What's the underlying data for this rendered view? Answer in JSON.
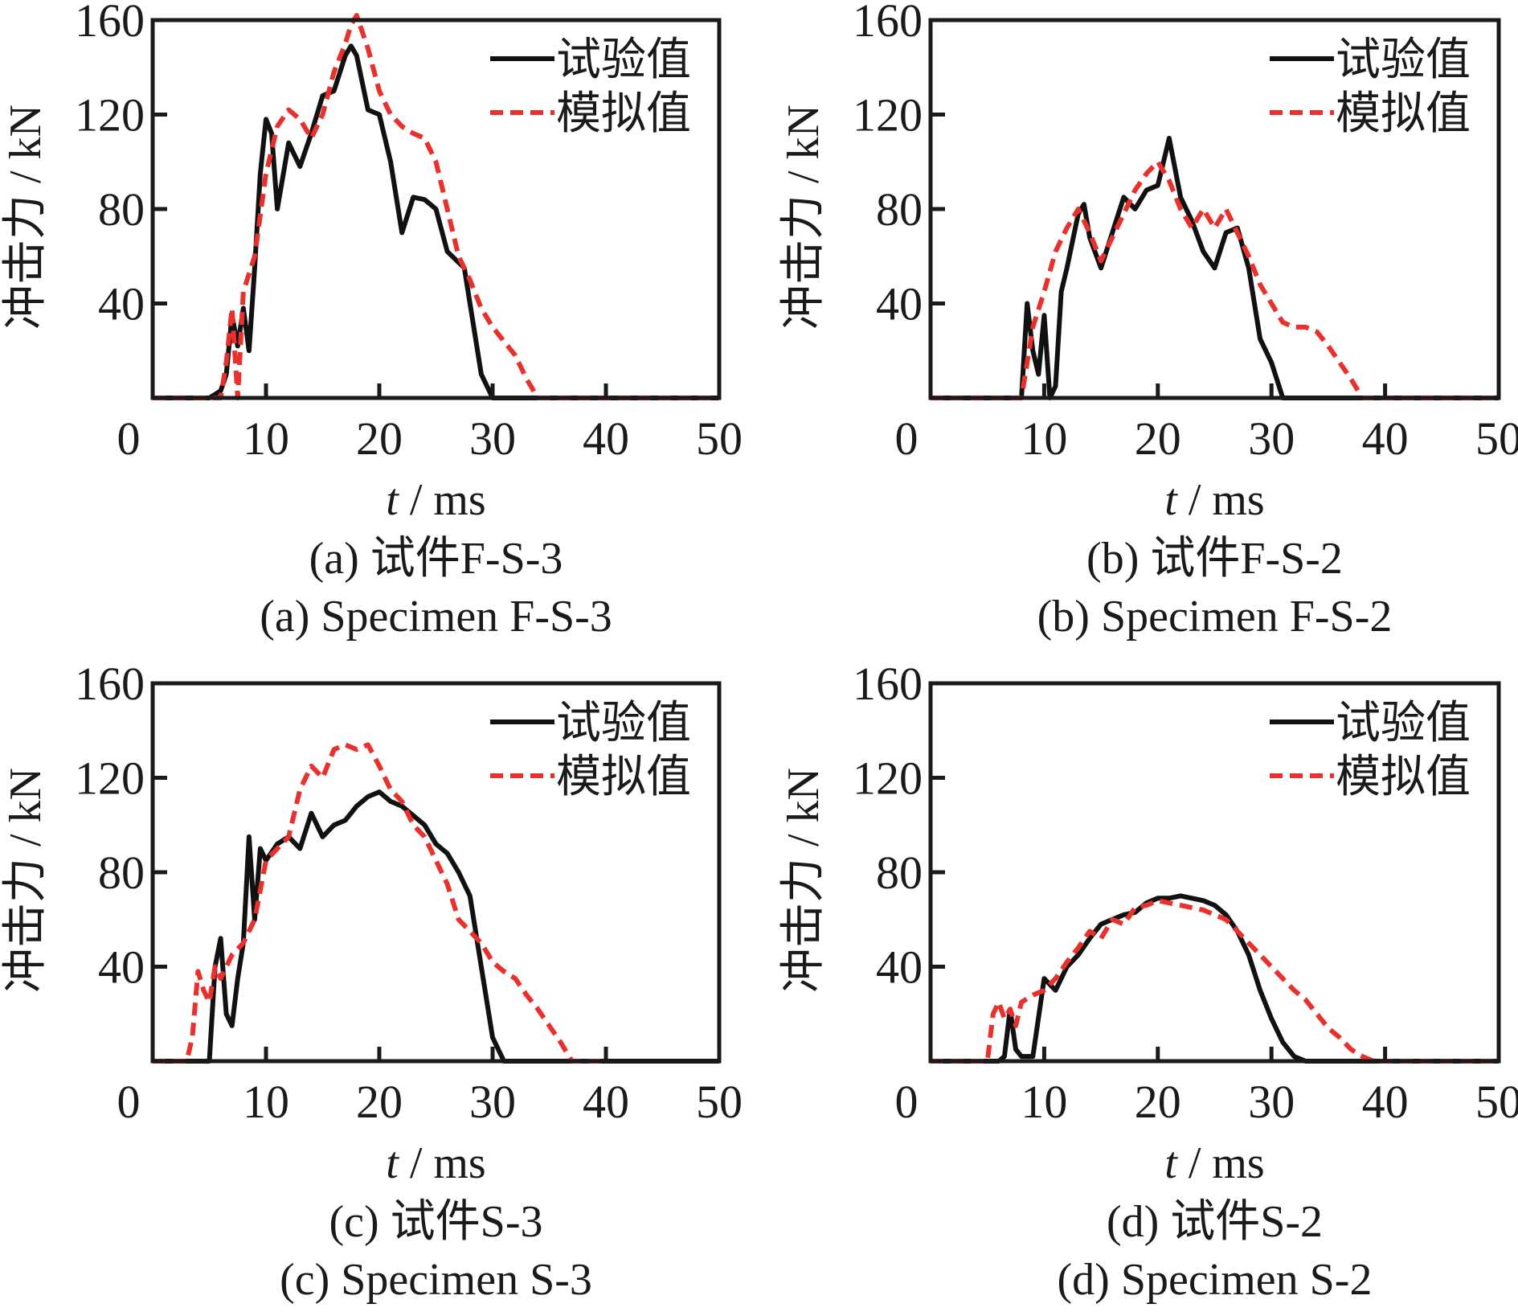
{
  "figure": {
    "legend": {
      "experimental": "试验值",
      "simulated": "模拟值"
    },
    "colors": {
      "experimental": "#111111",
      "simulated": "#e8302c"
    }
  },
  "chart_data": [
    {
      "type": "line",
      "panel": "a",
      "caption_cn": "(a)  试件F-S-3",
      "caption_en": "(a)  Specimen F-S-3",
      "xlabel_italic": "t",
      "xlabel_rest": " / ms",
      "ylabel": "冲击力 / kN",
      "xlim": [
        0,
        50
      ],
      "ylim": [
        0,
        160
      ],
      "xticks": [
        0,
        10,
        20,
        30,
        40,
        50
      ],
      "yticks": [
        40,
        80,
        120,
        160
      ],
      "legend_position": "top-right",
      "series": [
        {
          "name": "试验值",
          "style": "solid",
          "x": [
            0,
            5,
            6,
            6.5,
            7,
            7.5,
            8,
            8.5,
            9,
            9.5,
            10,
            10.5,
            11,
            12,
            13,
            14,
            15,
            16,
            17,
            17.5,
            18,
            19,
            20,
            21,
            22,
            23,
            24,
            25,
            26,
            27.5,
            29,
            30,
            50
          ],
          "y": [
            0,
            0,
            3,
            10,
            35,
            22,
            38,
            20,
            55,
            95,
            118,
            112,
            80,
            108,
            98,
            112,
            128,
            130,
            145,
            149,
            145,
            122,
            120,
            100,
            70,
            85,
            84,
            80,
            62,
            55,
            10,
            0,
            0
          ]
        },
        {
          "name": "模拟值",
          "style": "dashed",
          "x": [
            0,
            6,
            6.5,
            7,
            7.5,
            8,
            9,
            10,
            11,
            12,
            13,
            14,
            15,
            16,
            17,
            17.5,
            18,
            19,
            20,
            21,
            22,
            23,
            24,
            25,
            26,
            27,
            28,
            29,
            30,
            31,
            32,
            33,
            34,
            50
          ],
          "y": [
            0,
            0,
            15,
            38,
            0,
            45,
            60,
            95,
            115,
            122,
            118,
            110,
            120,
            138,
            150,
            158,
            162,
            148,
            130,
            120,
            115,
            112,
            110,
            100,
            80,
            60,
            50,
            38,
            30,
            24,
            18,
            8,
            0,
            0
          ]
        }
      ]
    },
    {
      "type": "line",
      "panel": "b",
      "caption_cn": "(b)  试件F-S-2",
      "caption_en": "(b)  Specimen F-S-2",
      "xlabel_italic": "t",
      "xlabel_rest": " / ms",
      "ylabel": "冲击力 / kN",
      "xlim": [
        0,
        50
      ],
      "ylim": [
        0,
        160
      ],
      "xticks": [
        0,
        10,
        20,
        30,
        40,
        50
      ],
      "yticks": [
        40,
        80,
        120,
        160
      ],
      "legend_position": "top-right",
      "series": [
        {
          "name": "试验值",
          "style": "solid",
          "x": [
            0,
            8,
            8.5,
            9,
            9.5,
            10,
            10.5,
            11,
            11.5,
            12,
            13,
            13.5,
            14,
            15,
            16,
            17,
            18,
            19,
            20,
            20.5,
            21,
            22,
            23,
            24,
            25,
            26,
            27,
            28,
            29,
            30,
            31,
            50
          ],
          "y": [
            0,
            0,
            40,
            20,
            10,
            35,
            0,
            5,
            45,
            55,
            78,
            82,
            68,
            55,
            70,
            85,
            80,
            88,
            90,
            100,
            110,
            85,
            75,
            62,
            55,
            70,
            72,
            55,
            25,
            15,
            0,
            0
          ]
        },
        {
          "name": "模拟值",
          "style": "dashed",
          "x": [
            0,
            8,
            8.5,
            9,
            10,
            11,
            12,
            13,
            14,
            15,
            16,
            17,
            18,
            19,
            20,
            21,
            22,
            23,
            24,
            25,
            26,
            27,
            28,
            29,
            30,
            31,
            32,
            33,
            34,
            35,
            36,
            37,
            38,
            39,
            50
          ],
          "y": [
            0,
            0,
            15,
            30,
            45,
            62,
            72,
            80,
            70,
            58,
            68,
            78,
            88,
            95,
            100,
            92,
            80,
            72,
            80,
            72,
            80,
            70,
            60,
            48,
            40,
            32,
            30,
            30,
            28,
            22,
            15,
            8,
            0,
            0,
            0
          ]
        }
      ]
    },
    {
      "type": "line",
      "panel": "c",
      "caption_cn": "(c)  试件S-3",
      "caption_en": "(c)  Specimen S-3",
      "xlabel_italic": "t",
      "xlabel_rest": " / ms",
      "ylabel": "冲击力 / kN",
      "xlim": [
        0,
        50
      ],
      "ylim": [
        0,
        160
      ],
      "xticks": [
        0,
        10,
        20,
        30,
        40,
        50
      ],
      "yticks": [
        40,
        80,
        120,
        160
      ],
      "legend_position": "top-right",
      "series": [
        {
          "name": "试验值",
          "style": "solid",
          "x": [
            0,
            5,
            5.5,
            6,
            6.5,
            7,
            7.5,
            8,
            8.5,
            9,
            9.5,
            10,
            11,
            12,
            13,
            14,
            15,
            16,
            17,
            18,
            19,
            20,
            21,
            22,
            23,
            24,
            25,
            26,
            27,
            28,
            29,
            30,
            31,
            50
          ],
          "y": [
            0,
            0,
            40,
            52,
            20,
            15,
            35,
            50,
            95,
            60,
            90,
            85,
            92,
            95,
            90,
            105,
            95,
            100,
            102,
            108,
            112,
            114,
            110,
            108,
            104,
            100,
            92,
            88,
            80,
            70,
            40,
            10,
            0,
            0
          ]
        },
        {
          "name": "模拟值",
          "style": "dashed",
          "x": [
            0,
            3,
            3.5,
            4,
            4.5,
            5,
            5.5,
            6,
            7,
            8,
            9,
            10,
            11,
            12,
            13,
            14,
            15,
            16,
            17,
            18,
            19,
            20,
            21,
            22,
            23,
            24,
            25,
            26,
            27,
            28,
            29,
            30,
            31,
            32,
            33,
            34,
            35,
            36,
            37,
            40
          ],
          "y": [
            0,
            0,
            10,
            38,
            30,
            25,
            40,
            35,
            45,
            50,
            60,
            85,
            90,
            95,
            115,
            125,
            120,
            132,
            134,
            132,
            134,
            125,
            115,
            110,
            100,
            95,
            85,
            75,
            60,
            55,
            50,
            42,
            38,
            35,
            28,
            22,
            15,
            8,
            0,
            0
          ]
        }
      ]
    },
    {
      "type": "line",
      "panel": "d",
      "caption_cn": "(d)  试件S-2",
      "caption_en": "(d)  Specimen S-2",
      "xlabel_italic": "t",
      "xlabel_rest": " / ms",
      "ylabel": "冲击力 / kN",
      "xlim": [
        0,
        50
      ],
      "ylim": [
        0,
        160
      ],
      "xticks": [
        0,
        10,
        20,
        30,
        40,
        50
      ],
      "yticks": [
        40,
        80,
        120,
        160
      ],
      "legend_position": "top-right",
      "series": [
        {
          "name": "试验值",
          "style": "solid",
          "x": [
            0,
            6,
            6.5,
            7,
            7.5,
            8,
            8.5,
            9,
            10,
            11,
            12,
            13,
            14,
            15,
            16,
            17,
            18,
            19,
            20,
            21,
            22,
            23,
            24,
            25,
            26,
            27,
            28,
            29,
            30,
            31,
            32,
            33,
            34,
            50
          ],
          "y": [
            0,
            0,
            2,
            22,
            5,
            2,
            2,
            2,
            35,
            30,
            40,
            45,
            52,
            58,
            60,
            62,
            63,
            67,
            69,
            69,
            70,
            69,
            68,
            66,
            62,
            55,
            45,
            30,
            18,
            8,
            2,
            0,
            0,
            0
          ]
        },
        {
          "name": "模拟值",
          "style": "dashed",
          "x": [
            0,
            5,
            5.5,
            6,
            6.5,
            7,
            7.5,
            8,
            9,
            10,
            11,
            12,
            13,
            14,
            15,
            16,
            17,
            18,
            19,
            20,
            21,
            22,
            23,
            24,
            25,
            26,
            27,
            28,
            29,
            30,
            31,
            32,
            33,
            34,
            35,
            36,
            37,
            38,
            39,
            40,
            50
          ],
          "y": [
            0,
            0,
            20,
            25,
            18,
            22,
            15,
            25,
            28,
            30,
            35,
            42,
            48,
            55,
            52,
            60,
            58,
            65,
            66,
            68,
            67,
            66,
            65,
            64,
            62,
            60,
            55,
            50,
            45,
            40,
            35,
            30,
            26,
            20,
            14,
            10,
            5,
            2,
            0,
            0,
            0
          ]
        }
      ]
    }
  ]
}
